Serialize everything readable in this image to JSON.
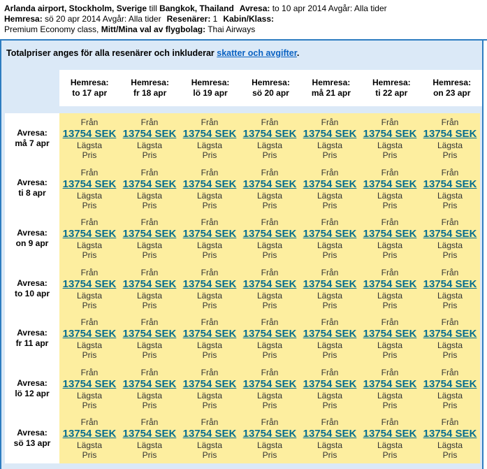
{
  "trip_summary": {
    "origin": "Arlanda airport, Stockholm, Sverige",
    "till": "till",
    "destination": "Bangkok, Thailand",
    "avresa_label": "Avresa:",
    "avresa_value": "to 10 apr 2014 Avgår: Alla tider",
    "hemresa_label": "Hemresa:",
    "hemresa_value": "sö 20 apr 2014 Avgår: Alla tider",
    "resenarer_label": "Resenärer:",
    "resenarer_value": "1",
    "kabin_label": "Kabin/Klass:",
    "kabin_value": "Premium Economy class,",
    "flygbolag_label": "Mitt/Mina val av flygbolag:",
    "flygbolag_value": "Thai Airways"
  },
  "notice": {
    "text": "Totalpriser anges för alla resenärer och inkluderar",
    "link": "skatter och avgifter",
    "suffix": "."
  },
  "matrix": {
    "column_header_label": "Hemresa:",
    "row_header_label": "Avresa:",
    "columns": [
      "to 17 apr",
      "fr 18 apr",
      "lö 19 apr",
      "sö 20 apr",
      "må 21 apr",
      "ti 22 apr",
      "on 23 apr"
    ],
    "rows": [
      "må 7 apr",
      "ti 8 apr",
      "on 9 apr",
      "to 10 apr",
      "fr 11 apr",
      "lö 12 apr",
      "sö 13 apr"
    ],
    "cell": {
      "from_label": "Från",
      "lowest_label_line1": "Lägsta",
      "lowest_label_line2": "Pris"
    },
    "prices": [
      [
        "13754 SEK",
        "13754 SEK",
        "13754 SEK",
        "13754 SEK",
        "13754 SEK",
        "13754 SEK",
        "13754 SEK"
      ],
      [
        "13754 SEK",
        "13754 SEK",
        "13754 SEK",
        "13754 SEK",
        "13754 SEK",
        "13754 SEK",
        "13754 SEK"
      ],
      [
        "13754 SEK",
        "13754 SEK",
        "13754 SEK",
        "13754 SEK",
        "13754 SEK",
        "13754 SEK",
        "13754 SEK"
      ],
      [
        "13754 SEK",
        "13754 SEK",
        "13754 SEK",
        "13754 SEK",
        "13754 SEK",
        "13754 SEK",
        "13754 SEK"
      ],
      [
        "13754 SEK",
        "13754 SEK",
        "13754 SEK",
        "13754 SEK",
        "13754 SEK",
        "13754 SEK",
        "13754 SEK"
      ],
      [
        "13754 SEK",
        "13754 SEK",
        "13754 SEK",
        "13754 SEK",
        "13754 SEK",
        "13754 SEK",
        "13754 SEK"
      ],
      [
        "13754 SEK",
        "13754 SEK",
        "13754 SEK",
        "13754 SEK",
        "13754 SEK",
        "13754 SEK",
        "13754 SEK"
      ]
    ]
  },
  "colors": {
    "accent_blue": "#2d7dc1",
    "panel_blue": "#dbe9f7",
    "cell_yellow": "#fdee9f",
    "price_link": "#066e90",
    "notice_link": "#0a62c2"
  }
}
